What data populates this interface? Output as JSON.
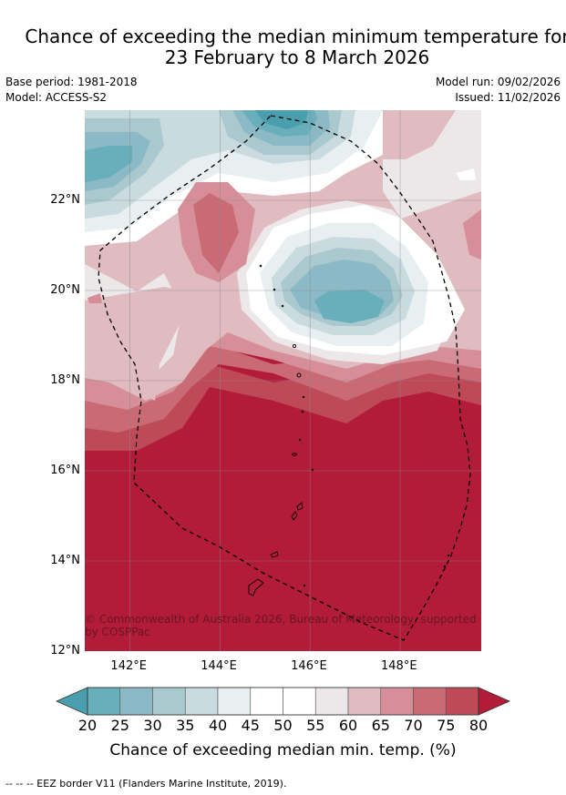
{
  "title": {
    "line1": "Chance of exceeding the median minimum temperature for",
    "line2": "23 February to 8 March 2026"
  },
  "meta": {
    "base_period": "Base period: 1981-2018",
    "model": "Model: ACCESS-S2",
    "model_run": "Model run: 09/02/2026",
    "issued": "Issued: 11/02/2026"
  },
  "map": {
    "lon_range": [
      141.0,
      149.8
    ],
    "lat_range": [
      12.0,
      24.0
    ],
    "lat_ticks": [
      {
        "value": 22,
        "label": "22°N"
      },
      {
        "value": 20,
        "label": "20°N"
      },
      {
        "value": 18,
        "label": "18°N"
      },
      {
        "value": 16,
        "label": "16°N"
      },
      {
        "value": 14,
        "label": "14°N"
      },
      {
        "value": 12,
        "label": "12°N"
      }
    ],
    "lon_ticks": [
      {
        "value": 142,
        "label": "142°E"
      },
      {
        "value": 144,
        "label": "144°E"
      },
      {
        "value": 146,
        "label": "146°E"
      },
      {
        "value": 148,
        "label": "148°E"
      }
    ],
    "gridlines": true,
    "copyright": "© Commonwealth of Australia 2026, Bureau of Meteorology, supported by COSPPac"
  },
  "colorbar": {
    "ticks": [
      "20",
      "25",
      "30",
      "35",
      "40",
      "45",
      "50",
      "55",
      "60",
      "65",
      "70",
      "75",
      "80"
    ],
    "colors": [
      "#4a9fae",
      "#68aebb",
      "#8bbac6",
      "#a9c9cf",
      "#c9dbdf",
      "#e8eff1",
      "#ffffff",
      "#ffffff",
      "#ece8ea",
      "#e0bbc0",
      "#d68f99",
      "#c96a75",
      "#be4a57",
      "#b21c38"
    ],
    "label": "Chance of exceeding median min. temp. (%)"
  },
  "footer": "--  --  -- EEZ border V11 (Flanders Marine Institute, 2019)."
}
